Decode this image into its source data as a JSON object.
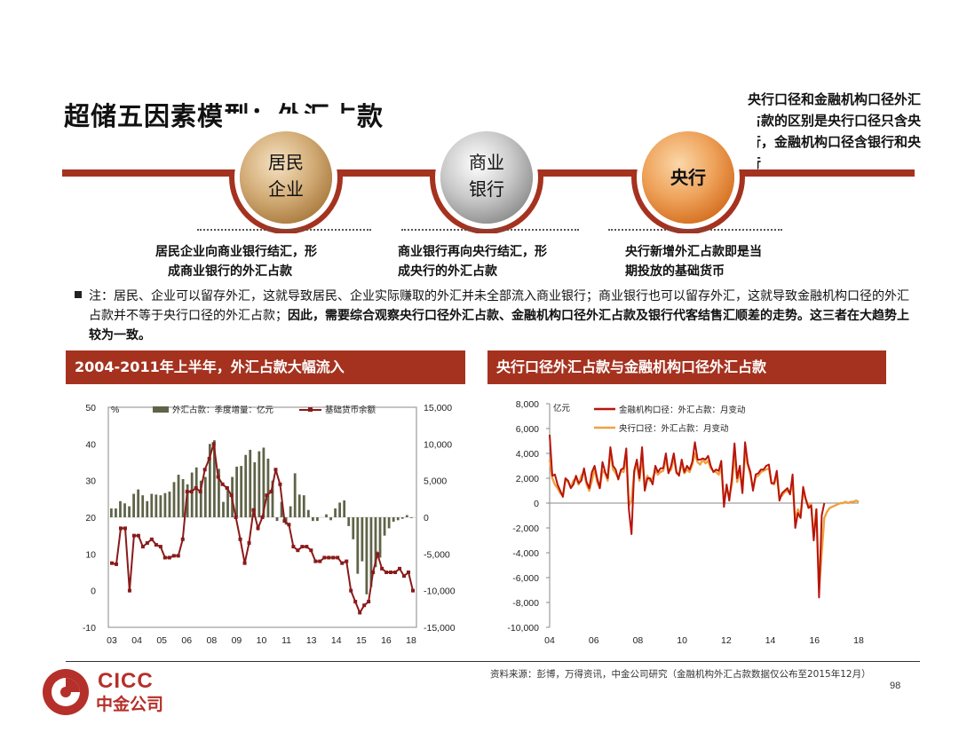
{
  "title": "超储五因素模型：外汇占款",
  "side_note": "央行口径和金融机构口径外汇占款的区别是央行口径只含央行，金融机构口径含银行和央行",
  "flow": [
    {
      "label_line1": "居民",
      "label_line2": "企业",
      "caption_line1": "居民企业向商业银行结汇，形",
      "caption_line2": "成商业银行的外汇占款"
    },
    {
      "label_line1": "商业",
      "label_line2": "银行",
      "caption_line1": "商业银行再向央行结汇，形",
      "caption_line2": "成央行的外汇占款"
    },
    {
      "label_line1": "央行",
      "label_line2": "",
      "caption_line1": "央行新增外汇占款即是当",
      "caption_line2": "期投放的基础货币"
    }
  ],
  "note": {
    "plain": "注：居民、企业可以留存外汇，这就导致居民、企业实际赚取的外汇并未全部流入商业银行；商业银行也可以留存外汇，这就导致金融机构口径的外汇占款并不等于央行口径的外汇占款；",
    "bold": "因此，需要综合观察央行口径外汇占款、金融机构口径外汇占款及银行代客结售汇顺差的走势。这三者在大趋势上较为一致。"
  },
  "chart_data": [
    {
      "banner": "2004-2011年上半年，外汇占款大幅流入",
      "type": "bar+line",
      "x_ticks": [
        "03",
        "04",
        "05",
        "06",
        "08",
        "09",
        "10",
        "11",
        "13",
        "14",
        "15",
        "16",
        "18"
      ],
      "left_axis": {
        "unit": "%",
        "ticks": [
          "50",
          "40",
          "30",
          "20",
          "10",
          "0",
          "-10"
        ],
        "ylim": [
          -10,
          50
        ]
      },
      "right_axis": {
        "ticks": [
          "15,000",
          "10,000",
          "5,000",
          "0",
          "-5,000",
          "-10,000",
          "-15,000"
        ],
        "ylim": [
          -15000,
          15000
        ]
      },
      "series": [
        {
          "name": "外汇占款：季度增量：亿元",
          "axis": "right",
          "type": "bar",
          "color": "#5f6448",
          "values": [
            1200,
            1200,
            2200,
            1900,
            1500,
            3200,
            3800,
            3000,
            2200,
            3200,
            3100,
            3000,
            3300,
            3500,
            4800,
            5800,
            5200,
            4500,
            6100,
            6800,
            5000,
            5500,
            10000,
            10500,
            6600,
            2100,
            4200,
            5500,
            6900,
            7000,
            8500,
            9200,
            7500,
            9000,
            9500,
            8000,
            5000,
            -500,
            2100,
            -1000,
            1500,
            6000,
            3100,
            3000,
            1000,
            -500,
            -500,
            0,
            400,
            -400,
            1200,
            2000,
            2300,
            -1200,
            -3000,
            -7700,
            -6000,
            -10500,
            -9500,
            -6800,
            -5500,
            -2500,
            -1500,
            -600,
            -400,
            -200,
            300,
            -100
          ]
        },
        {
          "name": "基础货币余额",
          "axis": "left",
          "type": "line",
          "color": "#8a1a1a",
          "values": [
            7.5,
            7.2,
            17,
            17,
            0,
            15,
            15,
            12,
            13,
            14,
            12.5,
            12,
            9,
            9,
            9.5,
            9.5,
            14,
            27,
            27,
            28,
            27,
            33,
            36,
            40,
            31,
            29,
            28,
            26,
            20,
            14,
            7.5,
            13,
            22,
            17,
            20,
            26,
            27,
            33,
            29,
            19,
            18,
            12,
            11,
            12,
            12,
            11,
            8,
            8,
            9,
            9,
            9,
            9,
            7.5,
            8,
            0,
            -3,
            -6,
            -4,
            -3,
            5,
            10,
            6,
            5,
            5,
            5,
            6,
            4,
            5,
            0
          ]
        }
      ],
      "grid": false
    },
    {
      "banner": "央行口径外汇占款与金融机构口径外汇占款",
      "type": "line",
      "y_unit": "亿元",
      "x_ticks": [
        "04",
        "06",
        "08",
        "10",
        "12",
        "14",
        "16",
        "18"
      ],
      "y_ticks": [
        "8,000",
        "6,000",
        "4,000",
        "2,000",
        "0",
        "-2,000",
        "-4,000",
        "-6,000",
        "-8,000",
        "-10,000"
      ],
      "ylim": [
        -10000,
        8000
      ],
      "series": [
        {
          "name": "金融机构口径：外汇占款：月变动",
          "color": "#b8140c",
          "values": [
            5500,
            2200,
            2300,
            1500,
            1000,
            500,
            2000,
            1800,
            1200,
            1500,
            2200,
            1600,
            1800,
            2800,
            1700,
            1200,
            2500,
            3000,
            2000,
            1200,
            3300,
            2500,
            2000,
            4500,
            3000,
            2700,
            1900,
            2700,
            2800,
            4400,
            -500,
            -2500,
            2600,
            3500,
            2000,
            4500,
            1000,
            2000,
            2000,
            1500,
            3000,
            2500,
            2800,
            2800,
            4000,
            2400,
            3000,
            4000,
            2500,
            2200,
            3500,
            2500,
            3000,
            2700,
            3300,
            4900,
            3500,
            3500,
            3600,
            3500,
            3800,
            3000,
            2500,
            2700,
            2600,
            3400,
            -300,
            1500,
            200,
            2000,
            4800,
            2000,
            3000,
            800,
            4900,
            3200,
            2500,
            1000,
            2300,
            2400,
            2700,
            2700,
            3000,
            3100,
            1600,
            1600,
            2600,
            200,
            800,
            1000,
            1200,
            700,
            2300,
            -2000,
            -800,
            -1200,
            1300,
            300,
            -400,
            -200,
            -3000,
            -500,
            -7600,
            -1000,
            0
          ]
        },
        {
          "name": "央行口径：外汇占款：月变动",
          "color": "#f0a040",
          "values": [
            3500,
            2000,
            1500,
            1200,
            800,
            600,
            1900,
            1700,
            1300,
            1800,
            2000,
            1500,
            2200,
            2500,
            1500,
            1000,
            1800,
            2800,
            1700,
            1200,
            2600,
            2400,
            1800,
            4200,
            2700,
            2400,
            2000,
            2600,
            2500,
            3900,
            -200,
            200,
            2400,
            3300,
            1800,
            3800,
            1300,
            2200,
            1800,
            2000,
            2600,
            2300,
            2500,
            2600,
            3600,
            2500,
            2700,
            3700,
            2400,
            2300,
            3200,
            2400,
            2700,
            2500,
            3100,
            4000,
            3300,
            3100,
            3500,
            3200,
            3400,
            2800,
            2600,
            2500,
            2300,
            2900,
            100,
            1200,
            500,
            1500,
            4000,
            1700,
            2600,
            1000,
            4000,
            3100,
            2300,
            1200,
            2100,
            2200,
            2500,
            2600,
            2700,
            2800,
            1600,
            1500,
            2300,
            500,
            600,
            900,
            1000,
            800,
            1700,
            -1500,
            -500,
            -1000,
            900,
            300,
            -200,
            -100,
            -2700,
            -500,
            -7000,
            -4000,
            -1200,
            -700,
            -400,
            -300,
            -200,
            -100,
            0,
            0,
            100,
            0,
            100,
            100,
            200,
            100
          ]
        }
      ],
      "legend": "top-left",
      "grid": false
    }
  ],
  "footer": {
    "source": "资料来源：彭博，万得资讯，中金公司研究（金融机构外汇占款数据仅公布至2015年12月）",
    "page": "98"
  },
  "logo": {
    "en": "CICC",
    "cn": "中金公司"
  },
  "colors": {
    "brand_red": "#a5321f",
    "gold": "#c69a5c",
    "silver": "#9a9a9a",
    "orange": "#e8852f"
  }
}
